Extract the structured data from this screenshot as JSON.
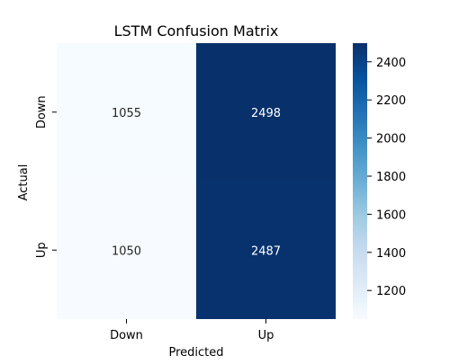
{
  "chart_data": {
    "type": "heatmap",
    "title": "LSTM Confusion Matrix",
    "xlabel": "Predicted",
    "ylabel": "Actual",
    "x_categories": [
      "Down",
      "Up"
    ],
    "y_categories": [
      "Down",
      "Up"
    ],
    "values": [
      [
        1055,
        2498
      ],
      [
        1050,
        2487
      ]
    ],
    "colormap": "Blues",
    "color_low": "#f7fbff",
    "color_high": "#08306b",
    "colorbar": {
      "min": 1050,
      "max": 2498,
      "ticks": [
        1200,
        1400,
        1600,
        1800,
        2000,
        2200,
        2400
      ]
    }
  }
}
